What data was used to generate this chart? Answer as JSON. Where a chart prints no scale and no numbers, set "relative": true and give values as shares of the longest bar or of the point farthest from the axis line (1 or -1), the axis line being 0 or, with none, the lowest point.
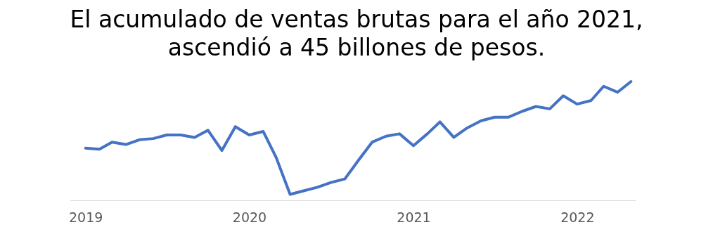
{
  "chart_data": {
    "type": "line",
    "title": "El acumulado de ventas brutas para el año 2021, ascendió a 45 billones de pesos.",
    "relative": true,
    "x": [
      "2019-01",
      "2019-02",
      "2019-03",
      "2019-04",
      "2019-05",
      "2019-06",
      "2019-07",
      "2019-08",
      "2019-09",
      "2019-10",
      "2019-11",
      "2019-12",
      "2020-01",
      "2020-02",
      "2020-03",
      "2020-04",
      "2020-05",
      "2020-06",
      "2020-07",
      "2020-08",
      "2020-09",
      "2020-10",
      "2020-11",
      "2020-12",
      "2021-01",
      "2021-02",
      "2021-03",
      "2021-04",
      "2021-05",
      "2021-06",
      "2021-07",
      "2021-08",
      "2021-09",
      "2021-10",
      "2021-11",
      "2021-12",
      "2022-01",
      "2022-02",
      "2022-03",
      "2022-04",
      "2022-05"
    ],
    "series": [
      {
        "color": "#4472c4",
        "values": [
          0.44,
          0.43,
          0.49,
          0.47,
          0.51,
          0.52,
          0.55,
          0.55,
          0.53,
          0.59,
          0.42,
          0.62,
          0.55,
          0.58,
          0.36,
          0.05,
          0.08,
          0.11,
          0.15,
          0.18,
          0.34,
          0.49,
          0.54,
          0.56,
          0.46,
          0.56,
          0.66,
          0.53,
          0.61,
          0.67,
          0.7,
          0.7,
          0.75,
          0.79,
          0.77,
          0.88,
          0.81,
          0.84,
          0.96,
          0.91,
          1
        ]
      }
    ],
    "xlim": [
      "2018-11-28",
      "2022-05-13"
    ],
    "xticks": [
      {
        "value": "2019",
        "label": "2019"
      },
      {
        "value": "2020",
        "label": "2020"
      },
      {
        "value": "2021",
        "label": "2021"
      },
      {
        "value": "2022",
        "label": "2022"
      }
    ],
    "grid": false,
    "legend": false,
    "marker": "none",
    "line_style": "solid"
  }
}
